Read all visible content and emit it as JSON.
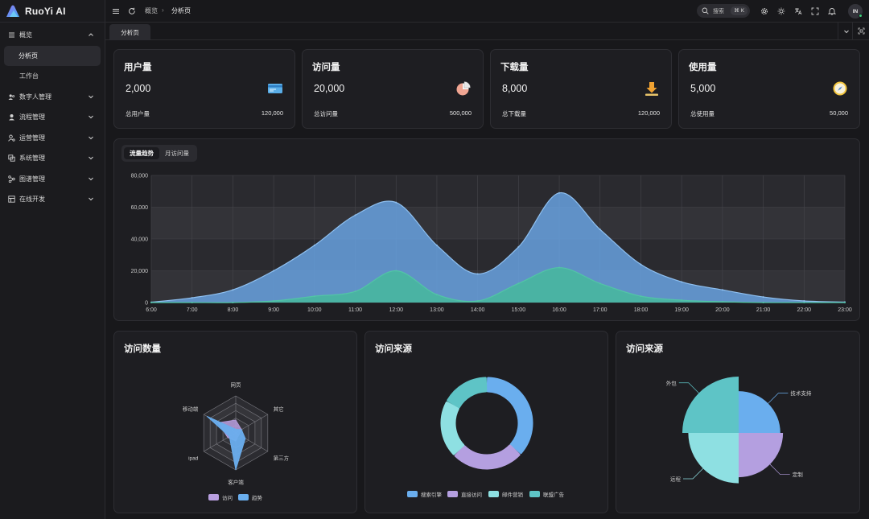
{
  "app": {
    "name": "RuoYi AI",
    "logo_icon": "ruoyi-logo-icon"
  },
  "sidebar": {
    "items": [
      {
        "label": "概览",
        "icon": "menu-icon",
        "expanded": true
      },
      {
        "label": "分析页",
        "sub": true,
        "active": true
      },
      {
        "label": "工作台",
        "sub": true
      },
      {
        "label": "数字人管理",
        "icon": "users-icon"
      },
      {
        "label": "流程管理",
        "icon": "user-icon"
      },
      {
        "label": "运营管理",
        "icon": "user-gear-icon"
      },
      {
        "label": "系统管理",
        "icon": "copy-icon"
      },
      {
        "label": "图谱管理",
        "icon": "graph-icon"
      },
      {
        "label": "在线开发",
        "icon": "code-icon"
      }
    ]
  },
  "header": {
    "breadcrumb": [
      "概览",
      "分析页"
    ],
    "search": {
      "placeholder": "搜索",
      "shortcut": "⌘ K"
    },
    "avatar": "IN"
  },
  "tabs": [
    {
      "label": "分析页",
      "active": true
    }
  ],
  "stats": [
    {
      "title": "用户量",
      "value": "2,000",
      "foot_label": "总用户量",
      "foot_value": "120,000",
      "icon": "card-icon"
    },
    {
      "title": "访问量",
      "value": "20,000",
      "foot_label": "总访问量",
      "foot_value": "500,000",
      "icon": "pie-icon"
    },
    {
      "title": "下载量",
      "value": "8,000",
      "foot_label": "总下载量",
      "foot_value": "120,000",
      "icon": "download-icon"
    },
    {
      "title": "使用量",
      "value": "5,000",
      "foot_label": "总使用量",
      "foot_value": "50,000",
      "icon": "compass-icon"
    }
  ],
  "trend": {
    "tabs": [
      "流量趋势",
      "月访问量"
    ],
    "active_tab": 0
  },
  "panels": {
    "radar_title": "访问数量",
    "donut_title": "访问来源",
    "rose_title": "访问来源"
  },
  "chart_data": [
    {
      "type": "area",
      "x": [
        "6:00",
        "7:00",
        "8:00",
        "9:00",
        "10:00",
        "11:00",
        "12:00",
        "13:00",
        "14:00",
        "15:00",
        "16:00",
        "17:00",
        "18:00",
        "19:00",
        "20:00",
        "21:00",
        "22:00",
        "23:00"
      ],
      "ylim": [
        0,
        80000
      ],
      "yticks": [
        "0",
        "20,000",
        "40,000",
        "60,000",
        "80,000"
      ],
      "grid": true,
      "series": [
        {
          "color": "#6aa6e6",
          "values": [
            200,
            3000,
            8000,
            20000,
            36000,
            55000,
            63000,
            36000,
            18000,
            35000,
            69000,
            46000,
            24000,
            13000,
            8000,
            3500,
            1000,
            300
          ]
        },
        {
          "color": "#46b99c",
          "values": [
            0,
            0,
            0,
            1000,
            4000,
            7000,
            20000,
            5000,
            1000,
            12000,
            22000,
            12000,
            4000,
            1500,
            500,
            0,
            0,
            0
          ]
        }
      ]
    },
    {
      "type": "radar",
      "indicators": [
        "网页",
        "其它",
        "第三方",
        "客户端",
        "ipad",
        "移动端"
      ],
      "max": 100,
      "series": [
        {
          "name": "访问",
          "color": "#b89fe0",
          "values": [
            35,
            18,
            10,
            22,
            25,
            55
          ]
        },
        {
          "name": "趋势",
          "color": "#6aaeee",
          "values": [
            10,
            18,
            30,
            100,
            20,
            90
          ]
        }
      ]
    },
    {
      "type": "pie",
      "variant": "donut",
      "series": [
        {
          "name": "搜索引擎",
          "color": "#6aaeee",
          "value": 1048
        },
        {
          "name": "直接访问",
          "color": "#b49fe0",
          "value": 735
        },
        {
          "name": "邮件营销",
          "color": "#8ee0e2",
          "value": 580
        },
        {
          "name": "联盟广告",
          "color": "#5ec4c6",
          "value": 484
        }
      ]
    },
    {
      "type": "pie",
      "variant": "rose",
      "series": [
        {
          "name": "外包",
          "color": "#5ec4c6",
          "value": 500
        },
        {
          "name": "定制",
          "color": "#b49fe0",
          "value": 310
        },
        {
          "name": "技术支持",
          "color": "#6aaeee",
          "value": 274
        },
        {
          "name": "远程",
          "color": "#8ee0e2",
          "value": 400
        }
      ]
    }
  ]
}
